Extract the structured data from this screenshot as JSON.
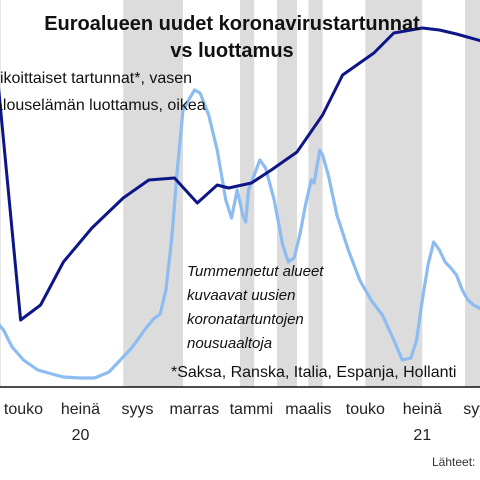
{
  "chart_data": {
    "type": "line",
    "title_line1": "Euroalueen uudet koronavirustartunnat",
    "title_line2": "vs luottamus",
    "legend": [
      "Viikoittaiset tartunnat*, vasen",
      "Talouselämän luottamus, oikea"
    ],
    "annotation_lines": [
      "Tummennetut alueet",
      "kuvaavat uusien",
      "koronatartuntojen",
      "nousuaaltoja"
    ],
    "footnote": "*Saksa, Ranska, Italia, Espanja, Hollanti",
    "source": "Lähteet:",
    "x_tick_labels": [
      "touko",
      "heinä",
      "syys",
      "marras",
      "tammi",
      "maalis",
      "touko",
      "heinä",
      "syys"
    ],
    "x_tick_months": [
      4,
      6,
      8,
      10,
      12,
      14,
      16,
      18,
      20
    ],
    "year_labels": [
      "20",
      "21"
    ],
    "year_months": [
      6,
      18
    ],
    "xlim": [
      3.0,
      20.2
    ],
    "shaded_periods": [
      [
        3.0,
        3.2
      ],
      [
        7.5,
        9.6
      ],
      [
        11.6,
        12.1
      ],
      [
        12.9,
        13.6
      ],
      [
        14.0,
        14.5
      ],
      [
        16.0,
        18.0
      ],
      [
        19.5,
        20.2
      ]
    ],
    "series": [
      {
        "name": "Talouselämän luottamus, oikea",
        "color": "#0d1687",
        "x": [
          3.0,
          3.1,
          3.9,
          4.6,
          5.4,
          6.4,
          7.5,
          8.4,
          9.3,
          10.1,
          10.8,
          11.2,
          12.0,
          12.7,
          13.6,
          14.5,
          15.2,
          16.3,
          17.0,
          18.0,
          18.6,
          19.2,
          20.2
        ],
        "y": [
          53,
          80,
          320,
          305,
          262,
          228,
          198,
          180,
          178,
          203,
          185,
          188,
          183,
          170,
          152,
          115,
          75,
          53,
          33,
          28,
          30,
          34,
          42
        ]
      },
      {
        "name": "Viikoittaiset tartunnat*, vasen",
        "color": "#8cbcf0",
        "x": [
          3.0,
          3.3,
          3.6,
          4.0,
          4.5,
          5.0,
          5.4,
          6.0,
          6.5,
          7.0,
          7.4,
          7.8,
          8.0,
          8.3,
          8.6,
          8.8,
          9.0,
          9.2,
          9.4,
          9.6,
          9.8,
          10.0,
          10.2,
          10.5,
          10.8,
          11.1,
          11.3,
          11.5,
          11.7,
          11.8,
          11.9,
          12.1,
          12.3,
          12.5,
          12.8,
          13.1,
          13.3,
          13.5,
          13.7,
          13.9,
          14.1,
          14.2,
          14.4,
          14.5,
          14.7,
          15.0,
          15.4,
          15.8,
          16.2,
          16.6,
          17.0,
          17.3,
          17.6,
          17.8,
          18.0,
          18.2,
          18.4,
          18.6,
          18.8,
          19.0,
          19.2,
          19.4,
          19.6,
          19.8,
          20.0,
          20.2
        ],
        "y": [
          320,
          330,
          347,
          360,
          370,
          374,
          377,
          378,
          378,
          372,
          360,
          348,
          340,
          328,
          318,
          314,
          290,
          240,
          170,
          110,
          100,
          90,
          93,
          115,
          150,
          200,
          218,
          190,
          215,
          222,
          190,
          175,
          160,
          168,
          200,
          245,
          262,
          258,
          235,
          205,
          180,
          183,
          150,
          155,
          175,
          215,
          250,
          280,
          300,
          315,
          340,
          360,
          358,
          340,
          300,
          265,
          242,
          250,
          262,
          268,
          275,
          290,
          300,
          305,
          308,
          312
        ]
      }
    ]
  }
}
